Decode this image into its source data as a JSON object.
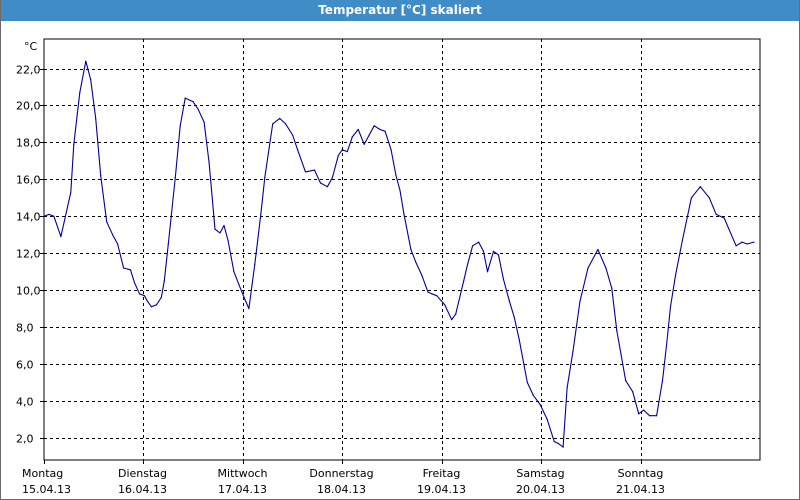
{
  "window": {
    "title": "Temperatur [°C] skaliert"
  },
  "chart_data": {
    "type": "line",
    "title": "Temperatur [°C] skaliert",
    "ylabel": "°C",
    "xlabel": "",
    "ylim": [
      0.8,
      23.6
    ],
    "yticks": [
      "2,0",
      "4,0",
      "6,0",
      "8,0",
      "10,0",
      "12,0",
      "14,0",
      "16,0",
      "18,0",
      "20,0",
      "22,0"
    ],
    "ytick_values": [
      2,
      4,
      6,
      8,
      10,
      12,
      14,
      16,
      18,
      20,
      22
    ],
    "xlim": [
      0,
      7.2
    ],
    "xticks": [
      {
        "day": "Montag",
        "date": "15.04.13"
      },
      {
        "day": "Dienstag",
        "date": "16.04.13"
      },
      {
        "day": "Mittwoch",
        "date": "17.04.13"
      },
      {
        "day": "Donnerstag",
        "date": "18.04.13"
      },
      {
        "day": "Freitag",
        "date": "19.04.13"
      },
      {
        "day": "Samstag",
        "date": "20.04.13"
      },
      {
        "day": "Sonntag",
        "date": "21.04.13"
      }
    ],
    "grid": true,
    "line_color": "#000099",
    "series": [
      {
        "x": [
          0,
          0.05,
          0.1,
          0.17,
          0.27,
          0.3,
          0.36,
          0.42,
          0.47,
          0.52,
          0.57,
          0.63,
          0.69,
          0.74,
          0.8,
          0.87,
          0.91,
          0.96,
          1.01,
          1.04,
          1.08,
          1.13,
          1.18,
          1.21,
          1.25,
          1.32,
          1.37,
          1.42,
          1.5,
          1.55,
          1.61,
          1.66,
          1.72,
          1.77,
          1.81,
          1.85,
          1.91,
          1.96,
          2.02,
          2.06,
          2.12,
          2.18,
          2.22,
          2.3,
          2.37,
          2.43,
          2.5,
          2.55,
          2.63,
          2.72,
          2.78,
          2.85,
          2.9,
          2.96,
          3.0,
          3.05,
          3.1,
          3.16,
          3.22,
          3.27,
          3.32,
          3.38,
          3.43,
          3.49,
          3.54,
          3.58,
          3.62,
          3.69,
          3.74,
          3.8,
          3.86,
          3.9,
          3.95,
          4.03,
          4.1,
          4.14,
          4.22,
          4.26,
          4.31,
          4.37,
          4.42,
          4.46,
          4.52,
          4.57,
          4.62,
          4.68,
          4.73,
          4.78,
          4.86,
          4.92,
          4.99,
          5.06,
          5.13,
          5.17,
          5.22,
          5.26,
          5.32,
          5.39,
          5.47,
          5.57,
          5.65,
          5.71,
          5.76,
          5.85,
          5.92,
          5.98,
          6.03,
          6.09,
          6.16,
          6.22,
          6.26,
          6.3,
          6.35,
          6.42,
          6.51,
          6.6,
          6.69,
          6.76,
          6.84,
          6.96,
          7.02,
          7.07,
          7.14
        ],
        "values": [
          14.0,
          14.1,
          14.0,
          12.9,
          15.3,
          17.9,
          20.7,
          22.4,
          21.4,
          19.3,
          16.2,
          13.7,
          13.0,
          12.5,
          11.2,
          11.1,
          10.4,
          9.8,
          9.7,
          9.4,
          9.1,
          9.2,
          9.6,
          10.5,
          12.5,
          16.1,
          18.9,
          20.4,
          20.2,
          19.8,
          19.1,
          16.9,
          13.3,
          13.1,
          13.5,
          12.7,
          11.0,
          10.3,
          9.5,
          9.0,
          11.4,
          14.1,
          16.1,
          19.0,
          19.3,
          19.0,
          18.4,
          17.6,
          16.4,
          16.5,
          15.8,
          15.6,
          16.1,
          17.3,
          17.6,
          17.5,
          18.3,
          18.7,
          17.9,
          18.4,
          18.9,
          18.7,
          18.6,
          17.6,
          16.2,
          15.4,
          14.1,
          12.2,
          11.5,
          10.8,
          9.9,
          9.8,
          9.7,
          9.2,
          8.4,
          8.7,
          10.5,
          11.4,
          12.4,
          12.6,
          12.1,
          11.0,
          12.1,
          11.9,
          10.6,
          9.4,
          8.5,
          7.3,
          5.0,
          4.3,
          3.8,
          3.0,
          1.8,
          1.7,
          1.5,
          4.7,
          6.7,
          9.4,
          11.2,
          12.2,
          11.2,
          10.1,
          7.8,
          5.1,
          4.5,
          3.3,
          3.5,
          3.2,
          3.2,
          5.1,
          7.0,
          9.1,
          10.8,
          12.7,
          15.0,
          15.6,
          15.0,
          14.1,
          13.9,
          12.4,
          12.6,
          12.5,
          12.6
        ]
      }
    ]
  }
}
